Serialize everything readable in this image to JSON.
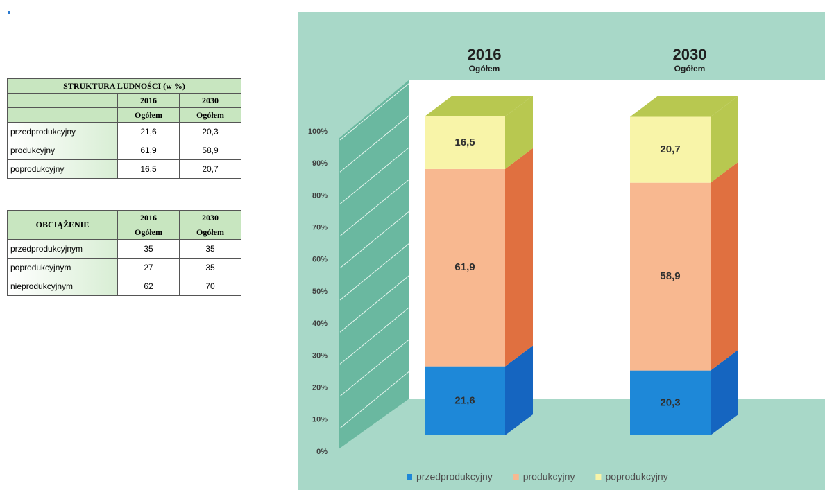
{
  "tables": [
    {
      "title": "STRUKTURA LUDNOŚCI (w %)",
      "header": [
        "2016",
        "2030"
      ],
      "subheader": [
        "Ogółem",
        "Ogółem"
      ],
      "rows": [
        [
          "przedprodukcyjny",
          "21,6",
          "20,3"
        ],
        [
          "produkcyjny",
          "61,9",
          "58,9"
        ],
        [
          "poprodukcyjny",
          "16,5",
          "20,7"
        ]
      ]
    },
    {
      "title": "OBCIĄŻENIE",
      "header": [
        "2016",
        "2030"
      ],
      "subheader": [
        "Ogółem",
        "Ogółem"
      ],
      "rows": [
        [
          "przedprodukcyjnym",
          "35",
          "35"
        ],
        [
          "poprodukcyjnym",
          "27",
          "35"
        ],
        [
          "nieprodukcyjnym",
          "62",
          "70"
        ]
      ]
    }
  ],
  "chart_data": {
    "type": "stacked_bar_3d",
    "categories": [
      "2016",
      "2030"
    ],
    "category_sublabels": [
      "Ogółem",
      "Ogółem"
    ],
    "series": [
      {
        "name": "przedprodukcyjny",
        "color": "#1e88d8",
        "side_color": "#1565c0",
        "values": [
          21.6,
          20.3
        ],
        "value_labels": [
          "21,6",
          "20,3"
        ]
      },
      {
        "name": "produkcyjny",
        "color": "#f8b890",
        "side_color": "#e07040",
        "values": [
          61.9,
          58.9
        ],
        "value_labels": [
          "61,9",
          "58,9"
        ]
      },
      {
        "name": "poprodukcyjny",
        "color": "#f8f4a8",
        "side_color": "#b8c850",
        "values": [
          16.5,
          20.7
        ],
        "value_labels": [
          "16,5",
          "20,7"
        ]
      }
    ],
    "ylim": [
      0,
      100
    ],
    "yticks": [
      {
        "value": 0,
        "label": "0%"
      },
      {
        "value": 10,
        "label": "10%"
      },
      {
        "value": 20,
        "label": "20%"
      },
      {
        "value": 30,
        "label": "30%"
      },
      {
        "value": 40,
        "label": "40%"
      },
      {
        "value": 50,
        "label": "50%"
      },
      {
        "value": 60,
        "label": "60%"
      },
      {
        "value": 70,
        "label": "70%"
      },
      {
        "value": 80,
        "label": "80%"
      },
      {
        "value": 90,
        "label": "90%"
      },
      {
        "value": 100,
        "label": "100%"
      }
    ],
    "grid": true,
    "legend": "bottom"
  }
}
